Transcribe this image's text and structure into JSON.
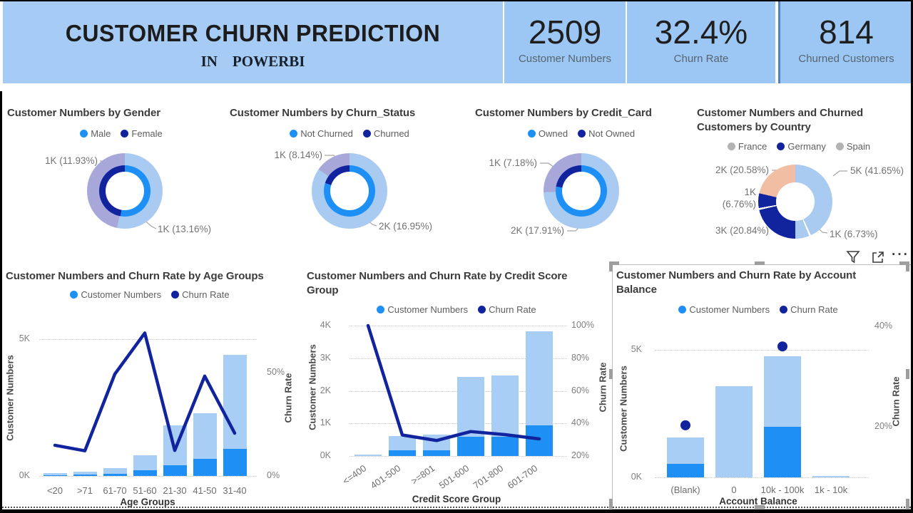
{
  "header": {
    "title": "CUSTOMER CHURN PREDICTION",
    "subtitle": "IN    POWERBI",
    "kpis": [
      {
        "value": "2509",
        "label": "Customer Numbers"
      },
      {
        "value": "32.4%",
        "label": "Churn Rate"
      },
      {
        "value": "814",
        "label": "Churned Customers"
      }
    ]
  },
  "colors": {
    "header_band": "#A6CCF5",
    "kpi_card": "#9CC7F4",
    "light_bar": "#A8CEF5",
    "bright_bar": "#1E90F5",
    "navy": "#12239E",
    "donut_light": "#A9CBF1",
    "donut_lavender": "#A7A7D9",
    "donut_salmon": "#F1BDA3",
    "legend_gray": "#B3B3B3",
    "leader": "#A6A6A6"
  },
  "visual_header": {
    "icons": [
      "filter-icon",
      "focus-mode-icon",
      "more-options-icon"
    ],
    "more_label": "···"
  },
  "chart_data": [
    {
      "id": "gender",
      "type": "pie",
      "title": "Customer Numbers by Gender",
      "legend": [
        {
          "label": "Male",
          "color": "#1E90F5"
        },
        {
          "label": "Female",
          "color": "#12239E"
        }
      ],
      "outer_segments": [
        {
          "color": "#A9CBF1",
          "end_deg": 192
        },
        {
          "color": "#A7A7D9",
          "end_deg": 360
        }
      ],
      "inner_segments": [
        {
          "color": "#1E90F5",
          "end_deg": 190
        },
        {
          "color": "#12239E",
          "end_deg": 360
        }
      ],
      "callouts": [
        "1K (11.93%)",
        "1K (13.16%)"
      ]
    },
    {
      "id": "churn_status",
      "type": "pie",
      "title": "Customer Numbers by Churn_Status",
      "legend": [
        {
          "label": "Not Churned",
          "color": "#1E90F5"
        },
        {
          "label": "Churned",
          "color": "#12239E"
        }
      ],
      "outer_segments": [
        {
          "color": "#A9CBF1",
          "end_deg": 305
        },
        {
          "color": "#A7A7D9",
          "end_deg": 360
        }
      ],
      "inner_segments": [
        {
          "color": "#1E90F5",
          "end_deg": 288
        },
        {
          "color": "#12239E",
          "end_deg": 360
        }
      ],
      "callouts": [
        "1K (8.14%)",
        "2K (16.95%)"
      ]
    },
    {
      "id": "credit_card",
      "type": "pie",
      "title": "Customer Numbers by Credit_Card",
      "legend": [
        {
          "label": "Owned",
          "color": "#1E90F5"
        },
        {
          "label": "Not Owned",
          "color": "#12239E"
        }
      ],
      "outer_segments": [
        {
          "color": "#A9CBF1",
          "end_deg": 268
        },
        {
          "color": "#A7A7D9",
          "end_deg": 360
        }
      ],
      "inner_segments": [
        {
          "color": "#1E90F5",
          "end_deg": 280
        },
        {
          "color": "#12239E",
          "end_deg": 360
        }
      ],
      "callouts": [
        "1K (7.18%)",
        "2K (17.91%)"
      ]
    },
    {
      "id": "country",
      "type": "pie",
      "title": "Customer Numbers and Churned Customers by Country",
      "legend": [
        {
          "label": "France",
          "color": "#B3B3B3"
        },
        {
          "label": "Germany",
          "color": "#12239E"
        },
        {
          "label": "Spain",
          "color": "#B3B3B3"
        }
      ],
      "outer_segments": [
        {
          "color": "#A9CBF1",
          "end_deg": 155
        },
        {
          "color": "#FFFFFF",
          "end_deg": 158
        },
        {
          "color": "#A9CBF1",
          "end_deg": 180
        },
        {
          "color": "#12239E",
          "end_deg": 257
        },
        {
          "color": "#FFFFFF",
          "end_deg": 260
        },
        {
          "color": "#12239E",
          "end_deg": 283
        },
        {
          "color": "#F1BDA3",
          "end_deg": 360
        }
      ],
      "inner_segments": [],
      "callouts": [
        "2K (20.58%)",
        "5K (41.65%)",
        "1K\n(6.76%)",
        "3K (20.84%)",
        "1K (6.73%)"
      ]
    },
    {
      "id": "age_groups",
      "type": "bar",
      "title": "Customer Numbers and Churn Rate by Age Groups",
      "legend": [
        {
          "label": "Customer Numbers",
          "color": "#1E90F5"
        },
        {
          "label": "Churn Rate",
          "color": "#12239E"
        }
      ],
      "xlabel": "Age Groups",
      "y_left_label": "Customer Numbers",
      "y_right_label": "Churn Rate",
      "categories": [
        "<20",
        ">71",
        "61-70",
        "51-60",
        "21-30",
        "41-50",
        "31-40"
      ],
      "series": [
        {
          "name": "Customer Numbers (K)",
          "values": [
            0.11,
            0.16,
            0.29,
            0.75,
            1.84,
            2.28,
            4.42
          ]
        },
        {
          "name": "Churned portion (K)",
          "values": [
            0.03,
            0.04,
            0.08,
            0.21,
            0.4,
            0.63,
            0.98
          ]
        },
        {
          "name": "Churn Rate (%)",
          "values": [
            15.3,
            12.6,
            50,
            70,
            12.8,
            49,
            21.2
          ]
        }
      ],
      "y_left_ticks": [
        "0K",
        "5K"
      ],
      "y_right_ticks": [
        "0%",
        "50%"
      ],
      "ylim_left_k": [
        0,
        5
      ],
      "ylim_right_pct": [
        0,
        50
      ]
    },
    {
      "id": "credit_score",
      "type": "bar",
      "title": "Customer Numbers and Churn Rate by Credit Score Group",
      "legend": [
        {
          "label": "Customer Numbers",
          "color": "#1E90F5"
        },
        {
          "label": "Churn Rate",
          "color": "#12239E"
        }
      ],
      "xlabel": "Credit Score Group",
      "y_left_label": "Customer Numbers",
      "y_right_label": "Churn Rate",
      "categories": [
        "<=400",
        "401-500",
        ">=801",
        "501-600",
        "701-800",
        "601-700"
      ],
      "series": [
        {
          "name": "Customer Numbers (K)",
          "values": [
            0.04,
            0.62,
            0.65,
            2.42,
            2.47,
            3.82
          ]
        },
        {
          "name": "Churned portion (K)",
          "values": [
            0,
            0.18,
            0.18,
            0.58,
            0.6,
            0.95
          ]
        },
        {
          "name": "Churn Rate (%)",
          "values": [
            100,
            32.9,
            29.5,
            35,
            33.1,
            30.5
          ]
        }
      ],
      "y_left_ticks": [
        "0K",
        "1K",
        "2K",
        "3K",
        "4K"
      ],
      "y_right_ticks": [
        "20%",
        "40%",
        "60%",
        "80%",
        "100%"
      ],
      "ylim_left_k": [
        0,
        4
      ],
      "ylim_right_pct": [
        20,
        100
      ]
    },
    {
      "id": "account_balance",
      "type": "bar",
      "title": "Customer Numbers and Churn Rate by Account Balance",
      "legend": [
        {
          "label": "Customer Numbers",
          "color": "#1E90F5"
        },
        {
          "label": "Churn Rate",
          "color": "#12239E"
        }
      ],
      "xlabel": "Account Balance",
      "y_left_label": "Customer Numbers",
      "y_right_label": "Churn Rate",
      "categories": [
        "(Blank)",
        "0",
        "10k - 100k",
        "1k - 10k"
      ],
      "series": [
        {
          "name": "Customer Numbers (K)",
          "values": [
            1.56,
            3.58,
            4.75,
            0.05
          ]
        },
        {
          "name": "Churned portion (K)",
          "values": [
            0.53,
            0,
            1.97,
            0
          ]
        },
        {
          "name": "Churn Rate (%)",
          "values": [
            20.3,
            null,
            36,
            null
          ]
        }
      ],
      "y_left_ticks": [
        "0K",
        "5K"
      ],
      "y_right_ticks": [
        "20%",
        "40%"
      ],
      "ylim_left_k": [
        0,
        5
      ],
      "ylim_right_pct": [
        20,
        40
      ]
    }
  ]
}
